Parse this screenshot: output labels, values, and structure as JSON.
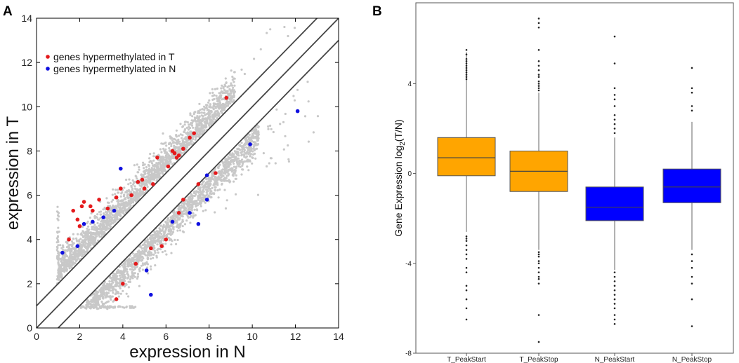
{
  "chart_data": [
    {
      "panel": "A",
      "type": "scatter",
      "xlabel": "expression in N",
      "ylabel": "expression in T",
      "xlim": [
        0,
        14
      ],
      "ylim": [
        0,
        14
      ],
      "xticks": [
        0,
        2,
        4,
        6,
        8,
        10,
        12,
        14
      ],
      "yticks": [
        0,
        2,
        4,
        6,
        8,
        10,
        12,
        14
      ],
      "diagonal_lines": [
        {
          "name": "upper",
          "intercept": 1
        },
        {
          "name": "identity",
          "intercept": 0
        },
        {
          "name": "lower",
          "intercept": -1
        }
      ],
      "legend_position": "top-left",
      "colors": {
        "background_points": "#c8c8c8",
        "hyper_T": "#e41a1c",
        "hyper_N": "#1010e0",
        "lines": "#444444"
      },
      "series": [
        {
          "name": "genes hypermethylated in T",
          "color": "#e41a1c",
          "points": [
            [
              1.7,
              5.3
            ],
            [
              1.9,
              4.9
            ],
            [
              2.1,
              5.5
            ],
            [
              2.2,
              5.7
            ],
            [
              2.5,
              5.5
            ],
            [
              2.6,
              5.3
            ],
            [
              2.9,
              5.8
            ],
            [
              3.3,
              5.4
            ],
            [
              3.7,
              5.9
            ],
            [
              3.9,
              6.3
            ],
            [
              4.4,
              6.0
            ],
            [
              4.7,
              6.6
            ],
            [
              4.9,
              6.7
            ],
            [
              5.0,
              6.3
            ],
            [
              5.4,
              6.5
            ],
            [
              5.6,
              7.7
            ],
            [
              6.1,
              7.3
            ],
            [
              6.4,
              7.9
            ],
            [
              6.6,
              7.8
            ],
            [
              6.8,
              8.1
            ],
            [
              7.1,
              8.6
            ],
            [
              7.3,
              8.8
            ],
            [
              8.3,
              7.0
            ],
            [
              8.8,
              10.4
            ],
            [
              7.5,
              6.5
            ],
            [
              6.8,
              5.8
            ],
            [
              6.6,
              5.2
            ],
            [
              6.0,
              4.0
            ],
            [
              5.8,
              3.7
            ],
            [
              5.3,
              3.6
            ],
            [
              4.6,
              2.9
            ],
            [
              4.0,
              2.0
            ],
            [
              3.7,
              1.3
            ],
            [
              1.5,
              4.0
            ],
            [
              2.0,
              4.6
            ],
            [
              6.3,
              8.0
            ],
            [
              6.5,
              7.7
            ]
          ]
        },
        {
          "name": "genes hypermethylated in N",
          "color": "#1010e0",
          "points": [
            [
              1.2,
              3.4
            ],
            [
              1.9,
              3.7
            ],
            [
              2.2,
              4.7
            ],
            [
              2.6,
              4.8
            ],
            [
              3.1,
              5.0
            ],
            [
              3.6,
              5.3
            ],
            [
              3.9,
              7.2
            ],
            [
              5.1,
              2.6
            ],
            [
              5.3,
              1.5
            ],
            [
              6.3,
              4.8
            ],
            [
              7.1,
              5.2
            ],
            [
              7.5,
              4.7
            ],
            [
              7.9,
              5.8
            ],
            [
              7.9,
              6.9
            ],
            [
              9.9,
              8.3
            ],
            [
              12.1,
              9.8
            ]
          ]
        }
      ]
    },
    {
      "panel": "B",
      "type": "box",
      "ylabel_main": "Gene Expression log",
      "ylabel_sub": "2",
      "ylabel_tail": "(T/N)",
      "ylim": [
        -8,
        7.6
      ],
      "yticks": [
        -8,
        -4,
        0,
        4
      ],
      "categories": [
        "T_PeakStart",
        "T_PeakStop",
        "N_PeakStart",
        "N_PeakStop"
      ],
      "colors": {
        "T_PeakStart": "#ffa500",
        "T_PeakStop": "#ffa500",
        "N_PeakStart": "#0000ff",
        "N_PeakStop": "#0000ff"
      },
      "boxes": [
        {
          "name": "T_PeakStart",
          "color": "#ffa500",
          "whisker_low": -2.6,
          "q1": -0.1,
          "median": 0.7,
          "q3": 1.6,
          "whisker_high": 5.4,
          "outliers": [
            5.5,
            5.3,
            5.1,
            5.0,
            4.9,
            4.8,
            4.7,
            4.6,
            4.5,
            4.4,
            4.3,
            4.2,
            -2.8,
            -2.9,
            -3.0,
            -3.2,
            -3.4,
            -3.6,
            -3.8,
            -4.2,
            -4.4,
            -5.0,
            -5.2,
            -5.6,
            -6.0,
            -6.5
          ]
        },
        {
          "name": "T_PeakStop",
          "color": "#ffa500",
          "whisker_low": -3.4,
          "q1": -0.8,
          "median": 0.1,
          "q3": 1.0,
          "whisker_high": 3.6,
          "outliers": [
            6.9,
            6.7,
            6.5,
            5.5,
            5.0,
            4.8,
            4.6,
            4.4,
            4.3,
            4.1,
            4.0,
            3.9,
            3.8,
            3.7,
            -3.5,
            -3.6,
            -3.7,
            -3.9,
            -4.0,
            -4.2,
            -4.4,
            -4.6,
            -4.7,
            -4.9,
            -6.3,
            -7.5
          ]
        },
        {
          "name": "N_PeakStart",
          "color": "#0000ff",
          "whisker_low": -4.3,
          "q1": -2.1,
          "median": -1.5,
          "q3": -0.6,
          "whisker_high": 1.6,
          "outliers": [
            6.1,
            4.9,
            3.8,
            3.5,
            3.3,
            3.0,
            2.6,
            2.4,
            2.2,
            2.0,
            1.8,
            -4.4,
            -4.6,
            -4.8,
            -5.0,
            -5.2,
            -5.4,
            -5.6,
            -5.8,
            -6.0,
            -6.3,
            -6.5,
            -6.7
          ]
        },
        {
          "name": "N_PeakStop",
          "color": "#0000ff",
          "whisker_low": -3.4,
          "q1": -1.3,
          "median": -0.6,
          "q3": 0.2,
          "whisker_high": 2.3,
          "outliers": [
            4.7,
            3.8,
            3.6,
            3.0,
            2.8,
            -3.6,
            -3.9,
            -4.2,
            -4.6,
            -4.9,
            -5.6,
            -6.8
          ]
        }
      ]
    }
  ],
  "labels": {
    "panelA": "A",
    "panelB": "B"
  }
}
